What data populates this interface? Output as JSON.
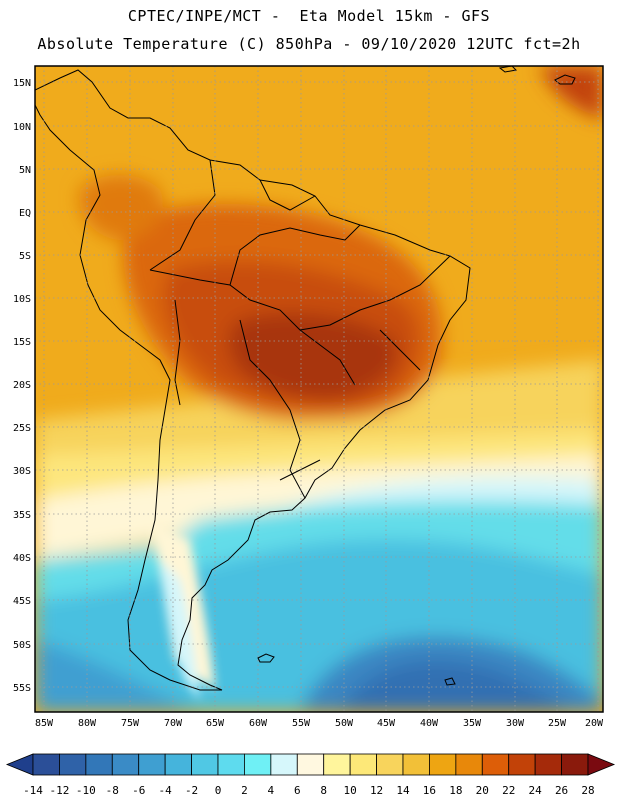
{
  "header": {
    "line1": "CPTEC/INPE/MCT -  Eta Model 15km - GFS",
    "line2": "Absolute Temperature (C) 850hPa - 09/10/2020 12UTC fct=2h"
  },
  "axes": {
    "lat_labels": [
      "15N",
      "10N",
      "5N",
      "EQ",
      "5S",
      "10S",
      "15S",
      "20S",
      "25S",
      "30S",
      "35S",
      "40S",
      "45S",
      "50S",
      "55S"
    ],
    "lon_labels": [
      "85W",
      "80W",
      "75W",
      "70W",
      "65W",
      "60W",
      "55W",
      "50W",
      "45W",
      "40W",
      "35W",
      "30W",
      "25W",
      "20W"
    ]
  },
  "colorbar": {
    "labels": [
      "-14",
      "-12",
      "-10",
      "-8",
      "-6",
      "-4",
      "-2",
      "0",
      "2",
      "4",
      "6",
      "8",
      "10",
      "12",
      "14",
      "16",
      "18",
      "20",
      "22",
      "24",
      "26",
      "28"
    ],
    "under_color": "#1f3f8c",
    "over_color": "#7a0a10",
    "colors": [
      "#2b4f98",
      "#2f62a8",
      "#3277b8",
      "#3a8bc6",
      "#3f9fd1",
      "#45b4dc",
      "#50c8e4",
      "#5edbee",
      "#6ff0f5",
      "#d6f7fb",
      "#fff8e0",
      "#fff59c",
      "#fde878",
      "#f8d45c",
      "#f2c038",
      "#eea512",
      "#e8880a",
      "#dd5e08",
      "#c24208",
      "#a52a0a",
      "#8a1a0c"
    ]
  },
  "legend_colors": {
    "cold_deep": "#2b5fae",
    "cold": "#47bde0",
    "cool": "#63dde9",
    "warm": "#efa81a",
    "hot": "#d15c10",
    "hottest": "#a8380e",
    "land_border": "#000000",
    "grid": "#9a9a9a"
  }
}
